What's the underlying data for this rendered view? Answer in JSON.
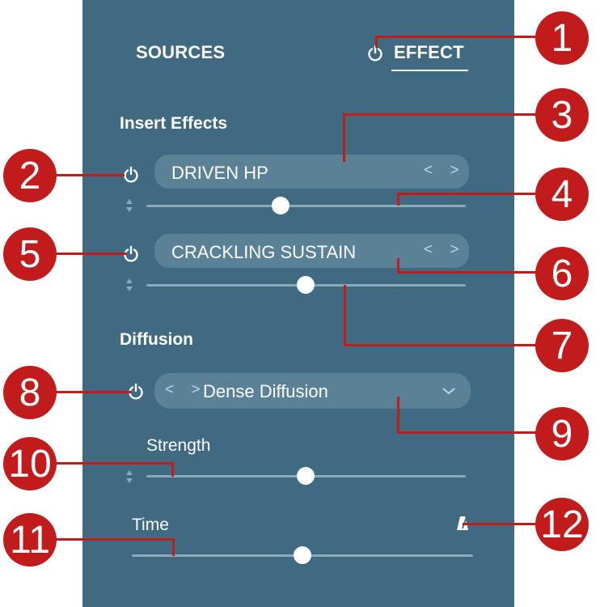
{
  "tabs": {
    "sources": "SOURCES",
    "effect": "EFFECT"
  },
  "sections": {
    "insert_effects": "Insert Effects",
    "diffusion": "Diffusion"
  },
  "effects": [
    {
      "name": "DRIVEN HP",
      "arrows": "< >",
      "slider_value": 0.42
    },
    {
      "name": "CRACKLING SUSTAIN",
      "arrows": "< >",
      "slider_value": 0.5
    }
  ],
  "diffusion": {
    "arrows": "< >",
    "preset": "Dense Diffusion",
    "strength_label": "Strength",
    "strength_value": 0.5,
    "time_label": "Time",
    "time_value": 0.5
  },
  "callouts": [
    "1",
    "2",
    "3",
    "4",
    "5",
    "6",
    "7",
    "8",
    "9",
    "10",
    "11",
    "12"
  ],
  "colors": {
    "panel": "#3f6a82",
    "pill": "#5b8196",
    "callout": "#c11b1b"
  },
  "icons": [
    "power-icon",
    "metronome-icon",
    "chevron-down-icon",
    "up-down-icon"
  ]
}
